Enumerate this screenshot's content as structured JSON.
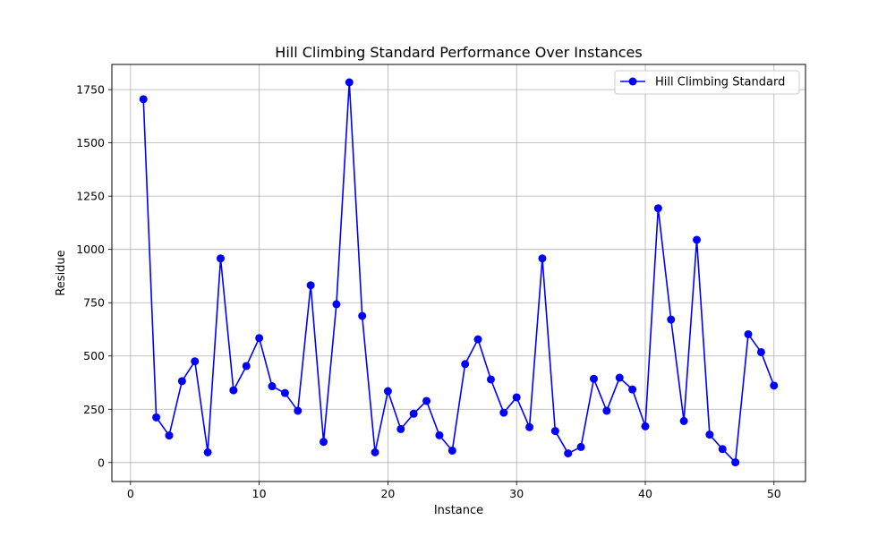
{
  "chart_data": {
    "type": "line",
    "title": "Hill Climbing Standard Performance Over Instances",
    "xlabel": "Instance",
    "ylabel": "Residue",
    "xlim": [
      -1.45,
      52.45
    ],
    "ylim": [
      -89,
      1868
    ],
    "xticks": [
      0,
      10,
      20,
      30,
      40,
      50
    ],
    "yticks": [
      0,
      250,
      500,
      750,
      1000,
      1250,
      1500,
      1750
    ],
    "grid": true,
    "legend_position": "top-right",
    "series": [
      {
        "name": "Hill Climbing Standard",
        "color": "#0000ff",
        "marker": "circle",
        "x": [
          1,
          2,
          3,
          4,
          5,
          6,
          7,
          8,
          9,
          10,
          11,
          12,
          13,
          14,
          15,
          16,
          17,
          18,
          19,
          20,
          21,
          22,
          23,
          24,
          25,
          26,
          27,
          28,
          29,
          30,
          31,
          32,
          33,
          34,
          35,
          36,
          37,
          38,
          39,
          40,
          41,
          42,
          43,
          44,
          45,
          46,
          47,
          48,
          49,
          50
        ],
        "values": [
          1705,
          212,
          127,
          382,
          475,
          48,
          958,
          339,
          453,
          584,
          358,
          326,
          243,
          832,
          97,
          743,
          1784,
          688,
          48,
          335,
          157,
          229,
          289,
          128,
          56,
          462,
          578,
          390,
          234,
          306,
          166,
          958,
          148,
          43,
          73,
          393,
          243,
          398,
          343,
          170,
          1193,
          671,
          195,
          1045,
          131,
          63,
          1,
          602,
          518,
          361
        ]
      }
    ]
  }
}
